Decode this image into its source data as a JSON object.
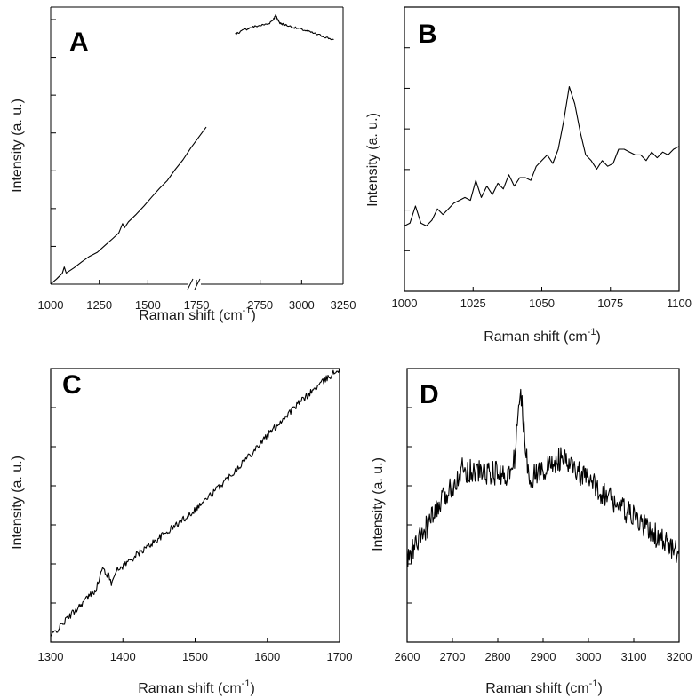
{
  "colors": {
    "line": "#000000",
    "text": "#1a1a1a",
    "background": "#ffffff"
  },
  "chart_data": [
    {
      "type": "line",
      "panel": "A",
      "xlabel": "Raman shift (cm",
      "xlabel_sup": "-1",
      "xlabel_end": ")",
      "ylabel": "Intensity (a. u.)",
      "axis_break": true,
      "segments": [
        {
          "xlim": [
            1000,
            1800
          ],
          "ticks": [
            "1000",
            "1250",
            "1500",
            "1750"
          ],
          "tick_values": [
            1000,
            1250,
            1500,
            1750
          ],
          "x": [
            1000,
            1030,
            1060,
            1070,
            1080,
            1120,
            1160,
            1200,
            1240,
            1280,
            1320,
            1350,
            1370,
            1380,
            1400,
            1440,
            1480,
            1520,
            1560,
            1600,
            1640,
            1680,
            1720,
            1760,
            1800
          ],
          "y": [
            0.0,
            0.02,
            0.04,
            0.06,
            0.04,
            0.06,
            0.08,
            0.1,
            0.12,
            0.14,
            0.17,
            0.19,
            0.22,
            0.21,
            0.23,
            0.26,
            0.29,
            0.32,
            0.35,
            0.38,
            0.42,
            0.46,
            0.5,
            0.54,
            0.58
          ]
        },
        {
          "xlim": [
            2350,
            3250
          ],
          "ticks": [
            "2750",
            "3000",
            "3250"
          ],
          "tick_values": [
            2750,
            3000,
            3250
          ],
          "x": [
            2600,
            2650,
            2700,
            2750,
            2800,
            2830,
            2845,
            2855,
            2870,
            2900,
            2950,
            3000,
            3050,
            3100,
            3150,
            3200
          ],
          "y": [
            0.921,
            0.935,
            0.946,
            0.952,
            0.958,
            0.975,
            0.99,
            0.975,
            0.96,
            0.955,
            0.945,
            0.938,
            0.928,
            0.918,
            0.908,
            0.898
          ]
        }
      ],
      "ylim": [
        0,
        1
      ]
    },
    {
      "type": "line",
      "panel": "B",
      "xlabel": "Raman shift (cm",
      "xlabel_sup": "-1",
      "xlabel_end": ")",
      "ylabel": "Intensity (a. u.)",
      "xlim": [
        1000,
        1100
      ],
      "ticks": [
        "1000",
        "1025",
        "1050",
        "1075",
        "1100"
      ],
      "tick_values": [
        1000,
        1025,
        1050,
        1075,
        1100
      ],
      "ylim": [
        0,
        1
      ],
      "x": [
        1000,
        1002,
        1004,
        1006,
        1008,
        1010,
        1012,
        1014,
        1016,
        1018,
        1020,
        1022,
        1024,
        1026,
        1028,
        1030,
        1032,
        1034,
        1036,
        1038,
        1040,
        1042,
        1044,
        1046,
        1048,
        1050,
        1052,
        1054,
        1056,
        1058,
        1060,
        1062,
        1064,
        1066,
        1068,
        1070,
        1072,
        1074,
        1076,
        1078,
        1080,
        1082,
        1084,
        1086,
        1088,
        1090,
        1092,
        1094,
        1096,
        1098,
        1100
      ],
      "y": [
        0.23,
        0.24,
        0.3,
        0.24,
        0.23,
        0.25,
        0.29,
        0.27,
        0.29,
        0.31,
        0.32,
        0.33,
        0.32,
        0.39,
        0.33,
        0.37,
        0.34,
        0.38,
        0.36,
        0.41,
        0.37,
        0.4,
        0.4,
        0.39,
        0.44,
        0.46,
        0.48,
        0.45,
        0.5,
        0.6,
        0.72,
        0.66,
        0.56,
        0.48,
        0.46,
        0.43,
        0.46,
        0.44,
        0.45,
        0.5,
        0.5,
        0.49,
        0.48,
        0.48,
        0.46,
        0.49,
        0.47,
        0.49,
        0.48,
        0.5,
        0.51
      ]
    },
    {
      "type": "line",
      "panel": "C",
      "xlabel": "Raman shift (cm",
      "xlabel_sup": "-1",
      "xlabel_end": ")",
      "ylabel": "Intensity (a. u.)",
      "xlim": [
        1300,
        1700
      ],
      "ticks": [
        "1300",
        "1400",
        "1500",
        "1600",
        "1700"
      ],
      "tick_values": [
        1300,
        1400,
        1500,
        1600,
        1700
      ],
      "ylim": [
        0,
        1
      ]
    },
    {
      "type": "line",
      "panel": "D",
      "xlabel": "Raman shift (cm",
      "xlabel_sup": "-1",
      "xlabel_end": ")",
      "ylabel": "Intensity (a. u.)",
      "xlim": [
        2600,
        3200
      ],
      "ticks": [
        "2600",
        "2700",
        "2800",
        "2900",
        "3000",
        "3100",
        "3200"
      ],
      "tick_values": [
        2600,
        2700,
        2800,
        2900,
        3000,
        3100,
        3200
      ],
      "ylim": [
        0,
        1
      ]
    }
  ]
}
